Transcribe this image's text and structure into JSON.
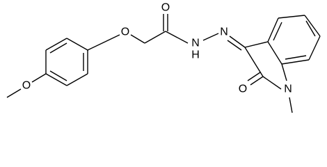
{
  "atoms": [
    {
      "label": "O"
    },
    {
      "label": "O"
    },
    {
      "label": "O"
    },
    {
      "label": "N"
    },
    {
      "label": "H"
    },
    {
      "label": "N"
    },
    {
      "label": "O"
    },
    {
      "label": "N"
    }
  ]
}
